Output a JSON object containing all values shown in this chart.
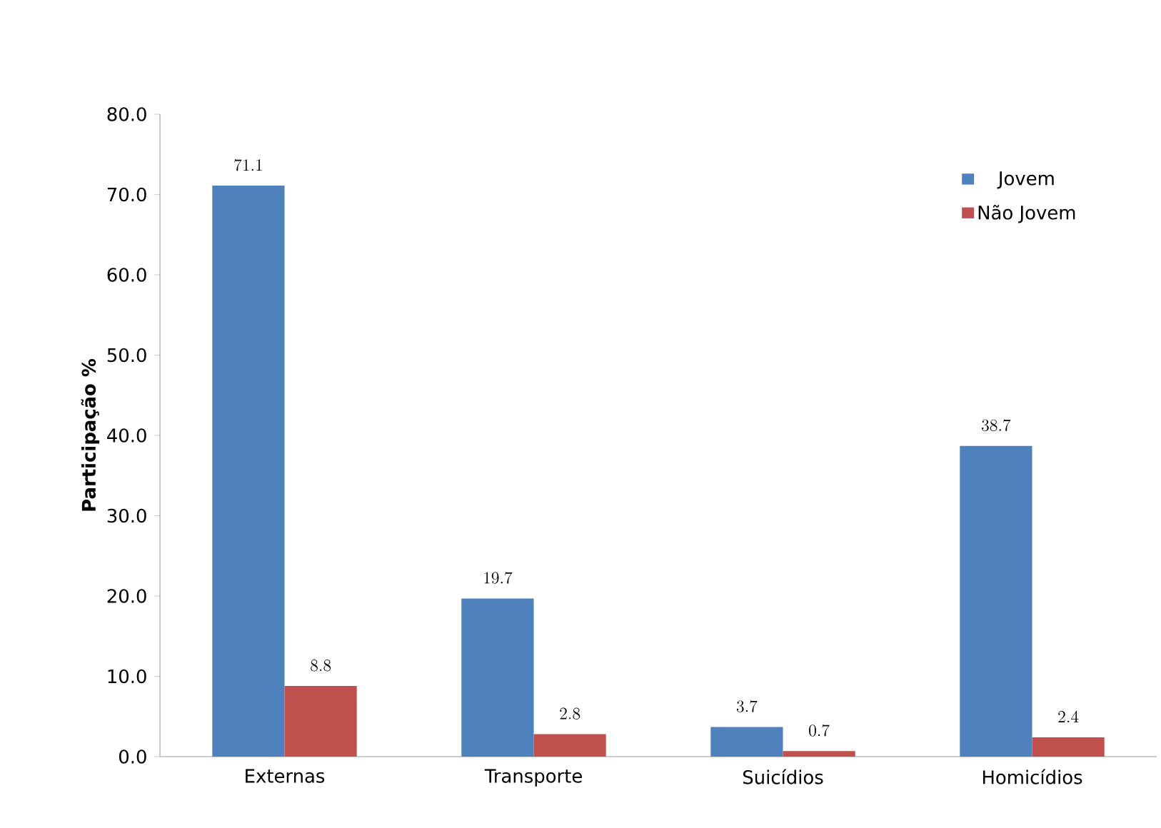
{
  "chart_data": {
    "type": "bar",
    "ylabel": "Participação %",
    "categories": [
      "Externas",
      "Transporte",
      "Suicídios",
      "Homicídios"
    ],
    "series": [
      {
        "name": "Jovem",
        "color": "#4f81bd",
        "values": [
          71.1,
          19.7,
          3.7,
          38.7
        ]
      },
      {
        "name": "Não Jovem",
        "color": "#c0504d",
        "values": [
          8.8,
          2.8,
          0.7,
          2.4
        ]
      }
    ],
    "ylim": [
      0,
      80
    ],
    "yticks": [
      {
        "value": 0,
        "label": "0.0"
      },
      {
        "value": 10,
        "label": "10.0"
      },
      {
        "value": 20,
        "label": "20.0"
      },
      {
        "value": 30,
        "label": "30.0"
      },
      {
        "value": 40,
        "label": "40.0"
      },
      {
        "value": 50,
        "label": "50.0"
      },
      {
        "value": 60,
        "label": "60.0"
      },
      {
        "value": 70,
        "label": "70.0"
      },
      {
        "value": 80,
        "label": "80.0"
      }
    ],
    "data_labels": true,
    "legend": "top right"
  }
}
